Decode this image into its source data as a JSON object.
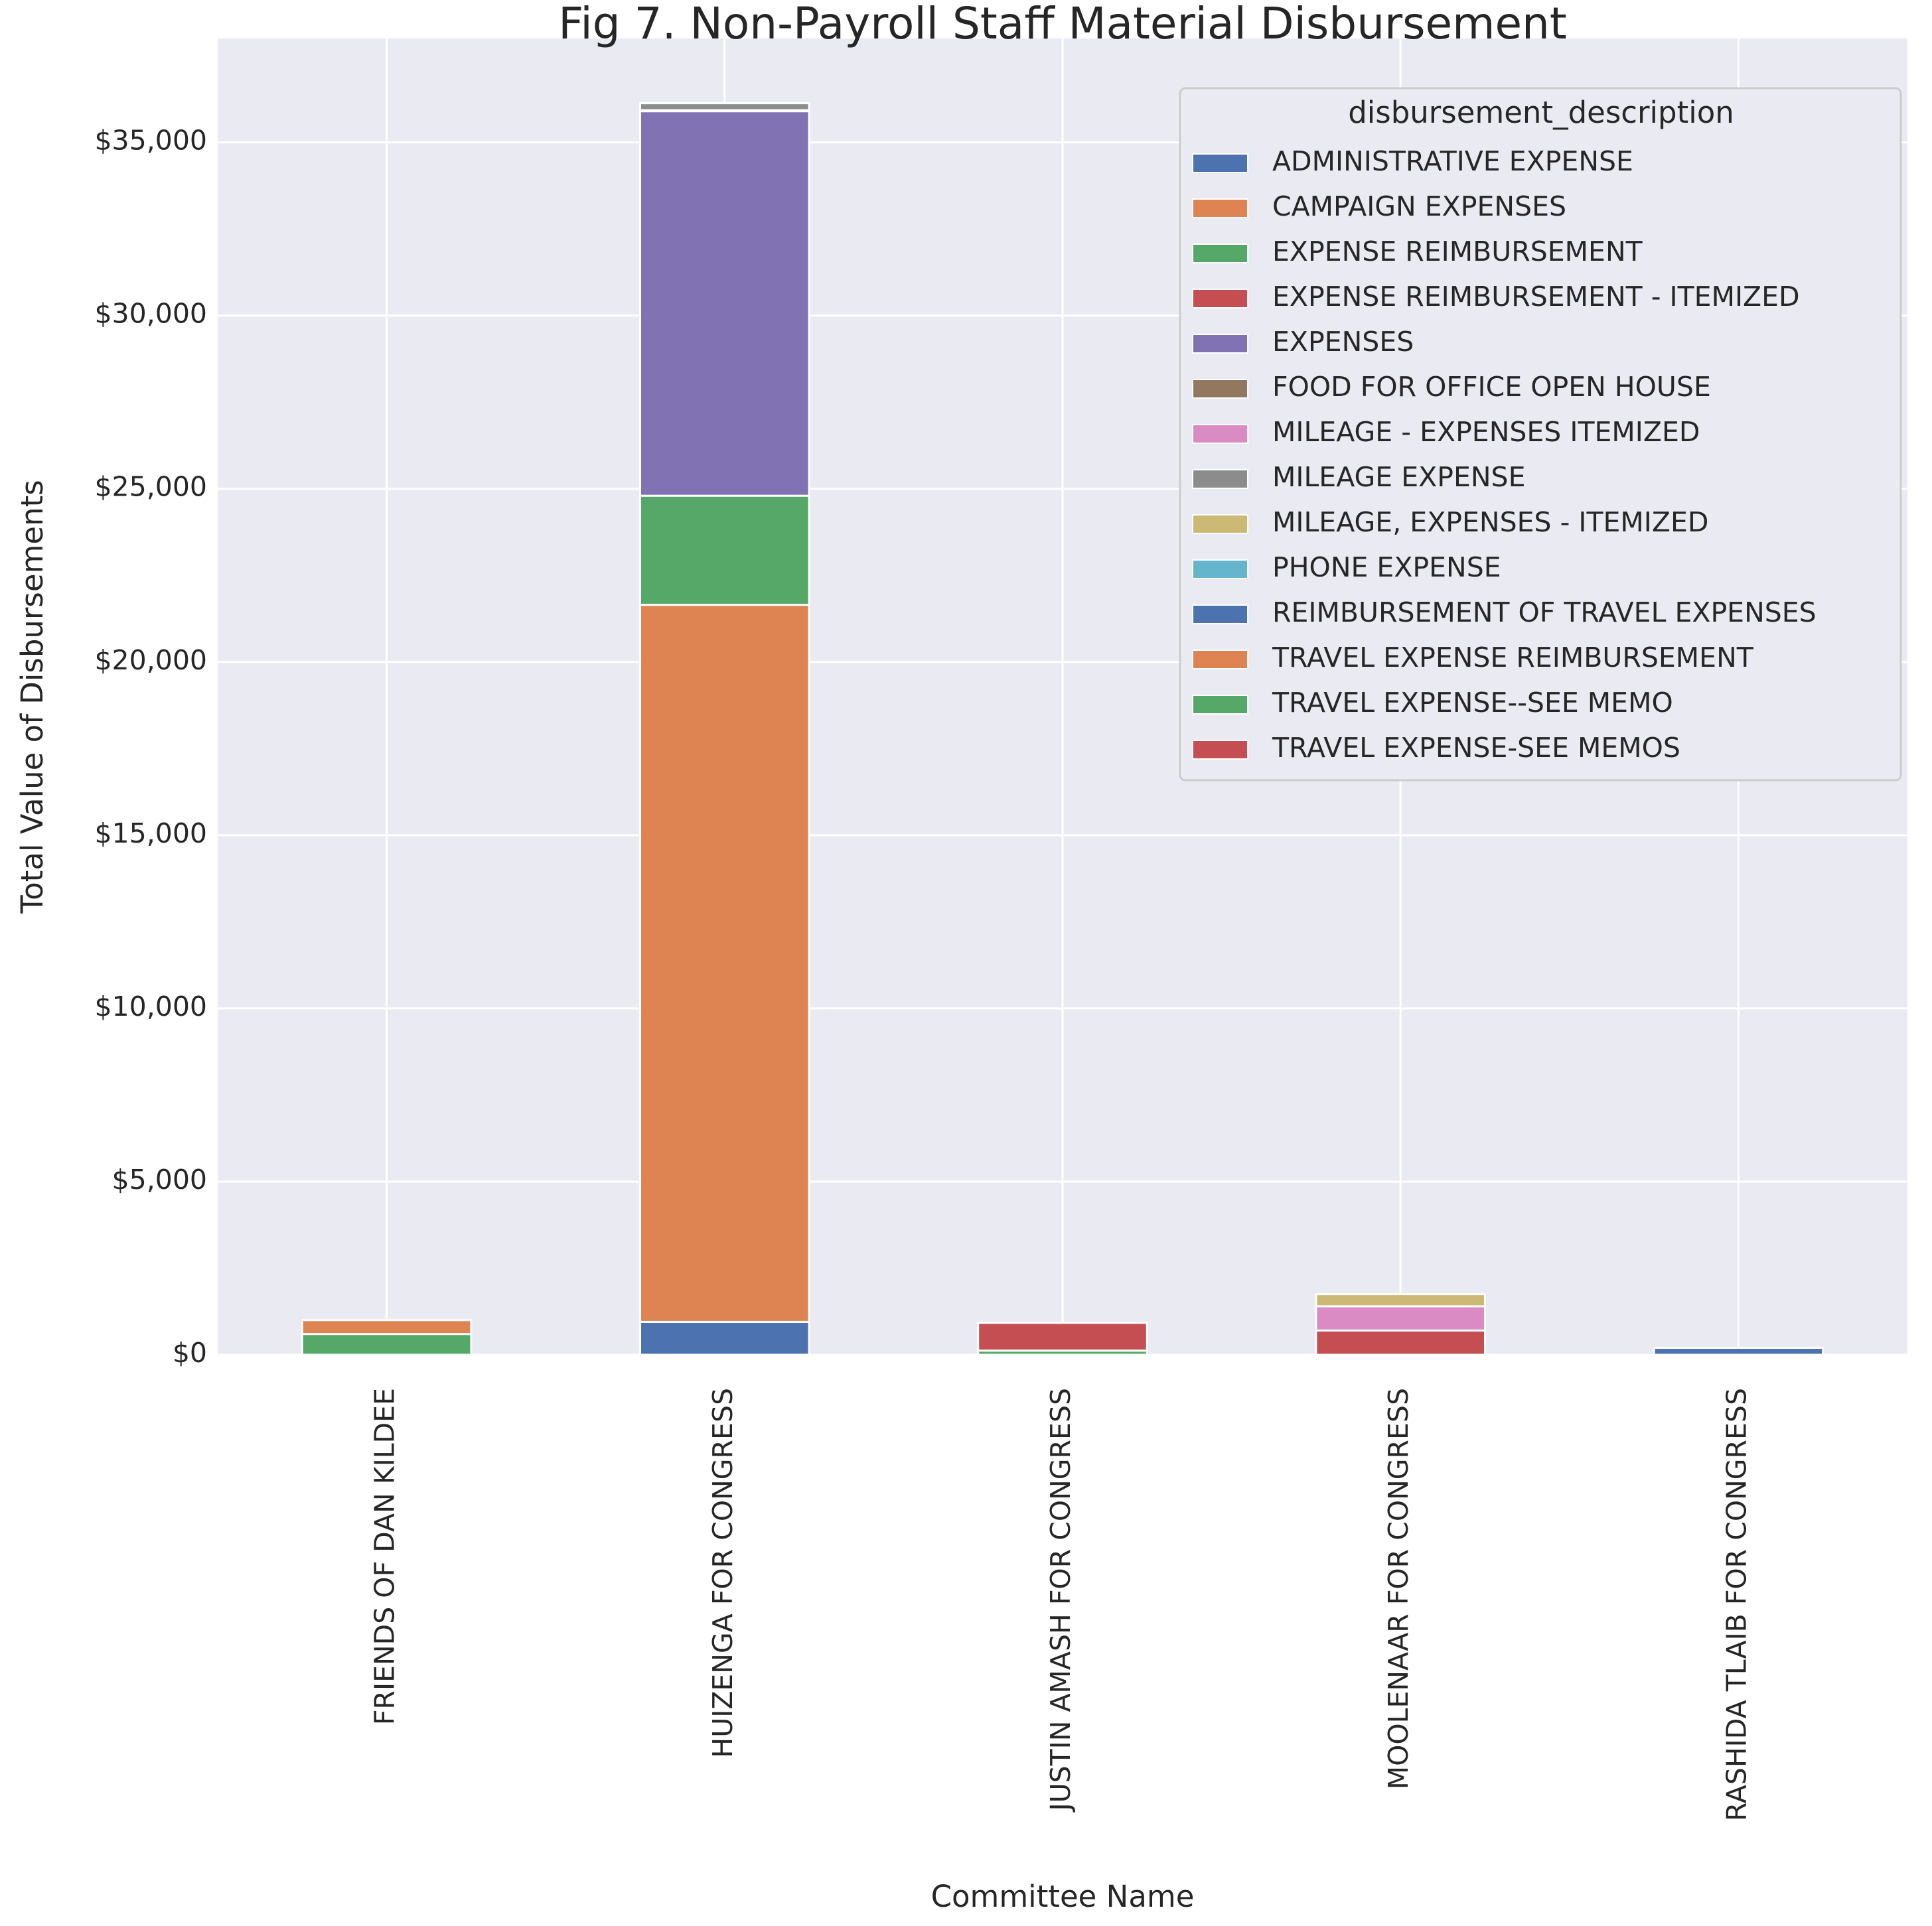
{
  "chart_data": {
    "type": "bar",
    "stacked": true,
    "title": "Fig 7. Non-Payroll Staff Material Disbursement",
    "xlabel": "Committee Name",
    "ylabel": "Total Value of Disbursements",
    "ylim": [
      0,
      38000
    ],
    "yticks": [
      0,
      5000,
      10000,
      15000,
      20000,
      25000,
      30000,
      35000
    ],
    "ytick_labels": [
      "$0",
      "$5,000",
      "$10,000",
      "$15,000",
      "$20,000",
      "$25,000",
      "$30,000",
      "$35,000"
    ],
    "grid": true,
    "legend_title": "disbursement_description",
    "legend_position": "top-right",
    "categories": [
      "FRIENDS OF DAN KILDEE",
      "HUIZENGA FOR CONGRESS",
      "JUSTIN AMASH FOR CONGRESS",
      "MOOLENAAR FOR CONGRESS",
      "RASHIDA TLAIB FOR CONGRESS"
    ],
    "series": [
      {
        "name": "ADMINISTRATIVE EXPENSE",
        "color": "#4c72b0",
        "values": [
          0,
          950,
          0,
          0,
          0
        ]
      },
      {
        "name": "CAMPAIGN EXPENSES",
        "color": "#dd8452",
        "values": [
          0,
          20700,
          0,
          0,
          0
        ]
      },
      {
        "name": "EXPENSE REIMBURSEMENT",
        "color": "#55a868",
        "values": [
          600,
          3150,
          0,
          0,
          0
        ]
      },
      {
        "name": "EXPENSE REIMBURSEMENT - ITEMIZED",
        "color": "#c44e52",
        "values": [
          0,
          0,
          0,
          700,
          0
        ]
      },
      {
        "name": "EXPENSES",
        "color": "#8172b3",
        "values": [
          0,
          11100,
          0,
          0,
          0
        ]
      },
      {
        "name": "FOOD FOR OFFICE OPEN HOUSE",
        "color": "#937860",
        "values": [
          0,
          30,
          0,
          0,
          0
        ]
      },
      {
        "name": "MILEAGE - EXPENSES ITEMIZED",
        "color": "#da8bc3",
        "values": [
          0,
          0,
          0,
          700,
          0
        ]
      },
      {
        "name": "MILEAGE EXPENSE",
        "color": "#8c8c8c",
        "values": [
          0,
          200,
          0,
          0,
          0
        ]
      },
      {
        "name": "MILEAGE, EXPENSES - ITEMIZED",
        "color": "#ccb974",
        "values": [
          0,
          0,
          0,
          350,
          0
        ]
      },
      {
        "name": "PHONE EXPENSE",
        "color": "#64b5cd",
        "values": [
          0,
          0,
          0,
          0,
          0
        ]
      },
      {
        "name": "REIMBURSEMENT OF TRAVEL EXPENSES",
        "color": "#4c72b0",
        "values": [
          0,
          0,
          0,
          0,
          200
        ]
      },
      {
        "name": "TRAVEL EXPENSE REIMBURSEMENT",
        "color": "#dd8452",
        "values": [
          400,
          0,
          0,
          0,
          0
        ]
      },
      {
        "name": "TRAVEL EXPENSE--SEE MEMO",
        "color": "#55a868",
        "values": [
          0,
          0,
          120,
          0,
          0
        ]
      },
      {
        "name": "TRAVEL EXPENSE-SEE MEMOS",
        "color": "#c44e52",
        "values": [
          0,
          0,
          800,
          0,
          0
        ]
      }
    ]
  }
}
